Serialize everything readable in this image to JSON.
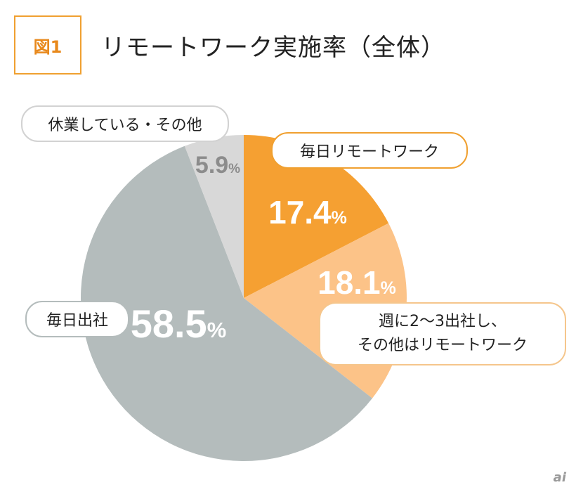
{
  "figure_label": "図1",
  "title": "リモートワーク実施率（全体）",
  "logo": "ai",
  "chart_data": {
    "type": "pie",
    "unit": "%",
    "slices": [
      {
        "label": "毎日リモートワーク",
        "value": 17.4,
        "color": "#f5a032",
        "text_color": "#ffffff"
      },
      {
        "label": "週に2〜3出社し、その他はリモートワーク",
        "value": 18.1,
        "color": "#fcc388",
        "text_color": "#ffffff"
      },
      {
        "label": "毎日出社",
        "value": 58.5,
        "color": "#b4bcbc",
        "text_color": "#ffffff"
      },
      {
        "label": "休業している・その他",
        "value": 5.9,
        "color": "#d8d8d8",
        "text_color": "#8c8c8c"
      }
    ]
  },
  "labels": {
    "daily_remote": "毎日リモートワーク",
    "hybrid_line1": "週に2〜3出社し、",
    "hybrid_line2": "その他はリモートワーク",
    "daily_office": "毎日出社",
    "other": "休業している・その他"
  }
}
